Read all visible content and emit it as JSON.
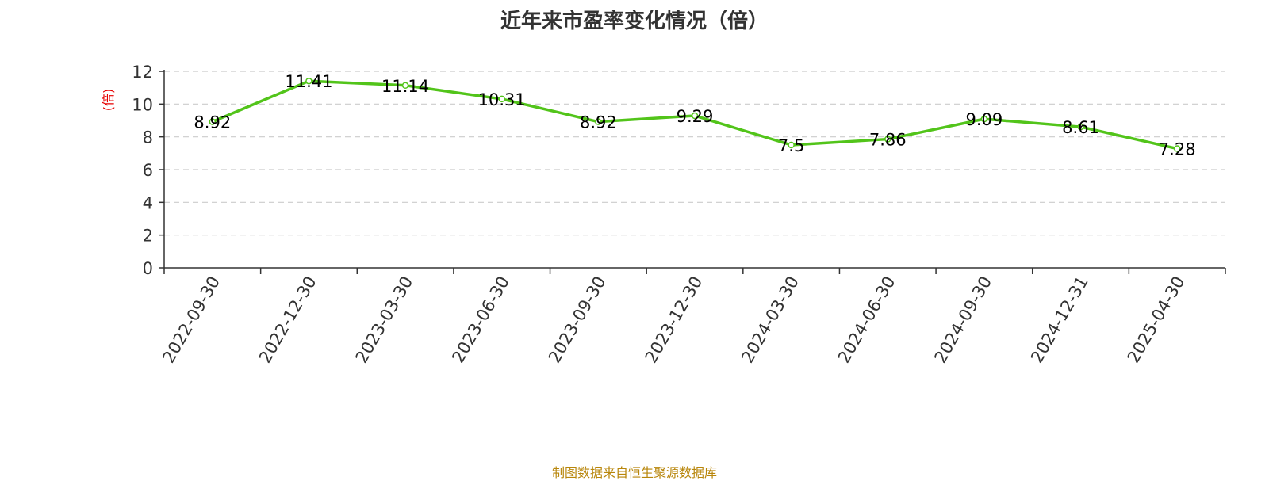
{
  "title": "近年来市盈率变化情况（倍）",
  "source": "制图数据来自恒生聚源数据库",
  "colors": {
    "line": "#52c41a",
    "ylabel": "#e60000",
    "grid": "#cccccc",
    "axis": "#333333",
    "source": "#b8860b"
  },
  "chart_data": {
    "type": "line",
    "title": "近年来市盈率变化情况（倍）",
    "xlabel": "",
    "ylabel": "(倍)",
    "categories": [
      "2022-09-30",
      "2022-12-30",
      "2023-03-30",
      "2023-06-30",
      "2023-09-30",
      "2023-12-30",
      "2024-03-30",
      "2024-06-30",
      "2024-09-30",
      "2024-12-31",
      "2025-04-30"
    ],
    "values": [
      8.92,
      11.41,
      11.14,
      10.31,
      8.92,
      9.29,
      7.5,
      7.86,
      9.09,
      8.61,
      7.28
    ],
    "ylim": [
      0,
      12
    ],
    "yticks": [
      0,
      2,
      4,
      6,
      8,
      10,
      12
    ],
    "grid": true,
    "legend": "none"
  }
}
